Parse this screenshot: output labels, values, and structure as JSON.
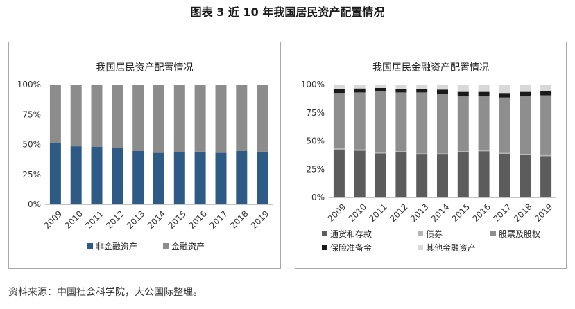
{
  "figure_title": "图表 3  近 10 年我国居民资产配置情况",
  "source_note": "资料来源：中国社会科学院，大公国际整理。",
  "chart_data": [
    {
      "type": "bar",
      "stacked": true,
      "percent": true,
      "title": "我国居民资产配置情况",
      "categories": [
        "2009",
        "2010",
        "2011",
        "2012",
        "2013",
        "2014",
        "2015",
        "2016",
        "2017",
        "2018",
        "2019"
      ],
      "ylim": [
        0,
        100
      ],
      "yticks": [
        "0%",
        "25%",
        "50%",
        "75%",
        "100%"
      ],
      "legend_position": "bottom",
      "series": [
        {
          "name": "非金融资产",
          "color": "#2e5a86",
          "values": [
            51,
            48.5,
            48,
            47,
            44.5,
            43,
            43.5,
            44,
            43,
            44.5,
            44
          ]
        },
        {
          "name": "金融资产",
          "color": "#8c8c8c",
          "values": [
            49,
            51.5,
            52,
            53,
            55.5,
            57,
            56.5,
            56,
            57,
            55.5,
            56
          ]
        }
      ]
    },
    {
      "type": "bar",
      "stacked": true,
      "percent": true,
      "title": "我国居民金融资产配置情况",
      "categories": [
        "2009",
        "2010",
        "2011",
        "2012",
        "2013",
        "2014",
        "2015",
        "2016",
        "2017",
        "2018",
        "2019"
      ],
      "ylim": [
        0,
        100
      ],
      "yticks": [
        "0%",
        "25%",
        "50%",
        "75%",
        "100%"
      ],
      "legend_position": "bottom",
      "series": [
        {
          "name": "通货和存款",
          "color": "#5c5c5c",
          "values": [
            42.5,
            41.5,
            39,
            40,
            38,
            38,
            40,
            41,
            38.5,
            37.5,
            36.5
          ]
        },
        {
          "name": "债券",
          "color": "#b4b4b4",
          "values": [
            1,
            1,
            1,
            1,
            1,
            1,
            1,
            1,
            1,
            1,
            1
          ]
        },
        {
          "name": "股票及股权",
          "color": "#8e8e8e",
          "values": [
            49,
            50.5,
            54,
            52,
            54,
            53,
            48.5,
            47.5,
            49,
            51,
            53
          ]
        },
        {
          "name": "保险准备金",
          "color": "#1a1a1a",
          "values": [
            3.5,
            3.5,
            3,
            3,
            3,
            3.5,
            4,
            4,
            4,
            4,
            4
          ]
        },
        {
          "name": "其他金融资产",
          "color": "#d8d8d8",
          "values": [
            4,
            3.5,
            3,
            4,
            4,
            4.5,
            6.5,
            6.5,
            7.5,
            6.5,
            5.5
          ]
        }
      ]
    }
  ]
}
